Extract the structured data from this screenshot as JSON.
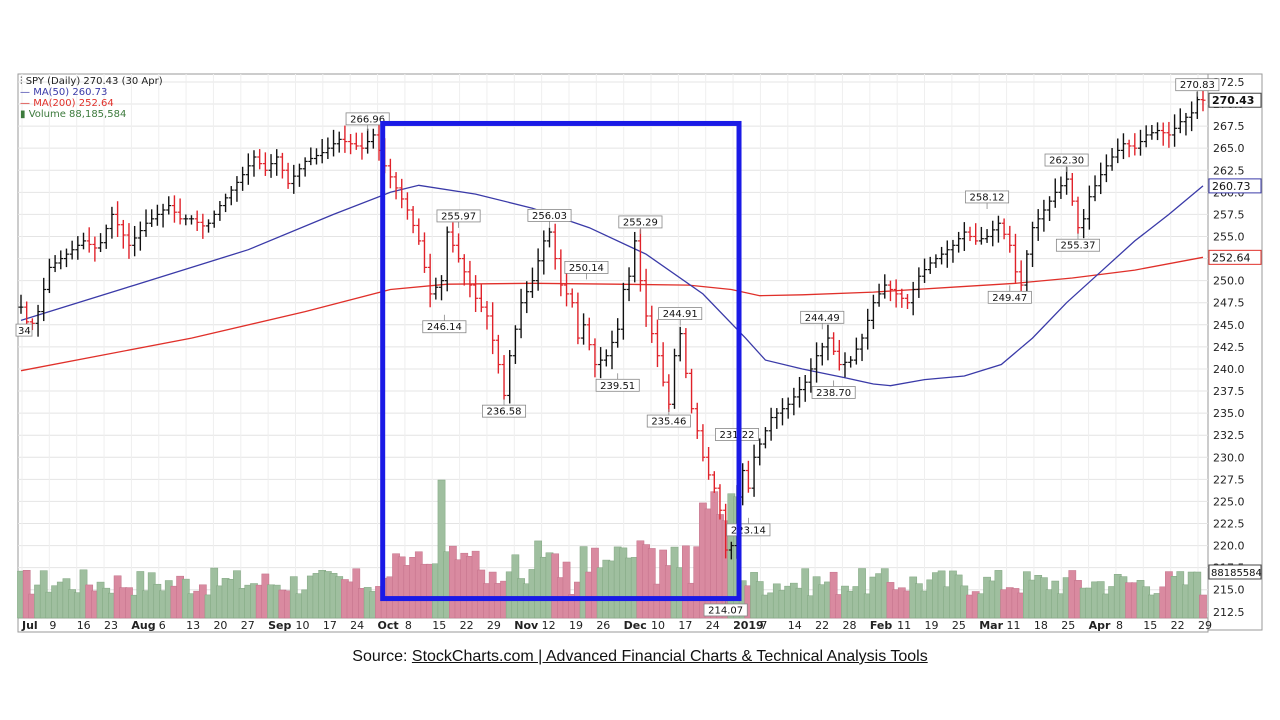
{
  "legend": {
    "symbol": "SPY (Daily) 270.43 (30 Apr)",
    "ma50": "MA(50) 260.73",
    "ma200": "MA(200) 252.64",
    "volume": "Volume 88,185,584"
  },
  "source": {
    "prefix": "Source: ",
    "link_text": "StockCharts.com | Advanced Financial Charts & Technical Analysis Tools"
  },
  "colors": {
    "up": "#111111",
    "down": "#e0222a",
    "ma50": "#3a3aa8",
    "ma200": "#e0302a",
    "vol_up": "#9fbf9f",
    "vol_down": "#d98aa0",
    "highlight": "#1a1ae6",
    "grid": "#e4e4e4"
  },
  "chart_data": {
    "type": "candlestick",
    "y_ticks": [
      "272.5",
      "270.0",
      "267.5",
      "265.0",
      "262.5",
      "260.0",
      "257.5",
      "255.0",
      "252.5",
      "250.0",
      "247.5",
      "245.0",
      "242.5",
      "240.0",
      "237.5",
      "235.0",
      "232.5",
      "230.0",
      "227.5",
      "225.0",
      "222.5",
      "220.0",
      "217.5",
      "215.0",
      "212.5"
    ],
    "ylim": [
      211.8,
      273.4
    ],
    "x_ticks": [
      "Jul",
      "9",
      "16",
      "23",
      "Aug",
      "6",
      "13",
      "20",
      "27",
      "Sep",
      "10",
      "17",
      "24",
      "Oct",
      "8",
      "15",
      "22",
      "29",
      "Nov",
      "12",
      "19",
      "26",
      "Dec",
      "10",
      "17",
      "24",
      "2019",
      "7",
      "14",
      "22",
      "28",
      "Feb",
      "11",
      "19",
      "25",
      "Mar",
      "11",
      "18",
      "25",
      "Apr",
      "8",
      "15",
      "22",
      "29"
    ],
    "right_labels": {
      "last_price": "270.43",
      "ma50": "260.73",
      "ma200": "252.64",
      "volume": "88185584",
      "last_price_value": 270.43,
      "ma50_value": 260.73,
      "ma200_value": 252.64
    },
    "price_path": [
      [
        0,
        247.0
      ],
      [
        3,
        244.5
      ],
      [
        6,
        246.5
      ],
      [
        10,
        251.5
      ],
      [
        16,
        253.0
      ],
      [
        22,
        254.5
      ],
      [
        27,
        253.5
      ],
      [
        32,
        257.5
      ],
      [
        38,
        254.0
      ],
      [
        44,
        256.5
      ],
      [
        52,
        258.5
      ],
      [
        56,
        257.0
      ],
      [
        60,
        257.0
      ],
      [
        65,
        256.0
      ],
      [
        70,
        258.5
      ],
      [
        78,
        262.0
      ],
      [
        82,
        264.0
      ],
      [
        86,
        262.5
      ],
      [
        90,
        264.0
      ],
      [
        94,
        261.0
      ],
      [
        100,
        263.5
      ],
      [
        106,
        264.5
      ],
      [
        112,
        266.0
      ],
      [
        116,
        265.5
      ],
      [
        120,
        265.0
      ],
      [
        124,
        266.5
      ],
      [
        128,
        263.0
      ],
      [
        132,
        260.5
      ],
      [
        136,
        258.0
      ],
      [
        140,
        254.5
      ],
      [
        144,
        248.5
      ],
      [
        148,
        250.0
      ],
      [
        150,
        255.5
      ],
      [
        152,
        254.0
      ],
      [
        156,
        251.0
      ],
      [
        160,
        248.0
      ],
      [
        164,
        246.0
      ],
      [
        168,
        240.5
      ],
      [
        170,
        237.0
      ],
      [
        172,
        241.5
      ],
      [
        174,
        244.5
      ],
      [
        176,
        247.5
      ],
      [
        180,
        250.0
      ],
      [
        184,
        254.5
      ],
      [
        186,
        255.5
      ],
      [
        188,
        252.5
      ],
      [
        190,
        249.5
      ],
      [
        194,
        247.5
      ],
      [
        196,
        243.5
      ],
      [
        198,
        245.0
      ],
      [
        202,
        240.5
      ],
      [
        206,
        241.5
      ],
      [
        210,
        244.5
      ],
      [
        212,
        249.0
      ],
      [
        214,
        250.5
      ],
      [
        216,
        254.5
      ],
      [
        218,
        250.0
      ],
      [
        220,
        246.0
      ],
      [
        222,
        244.0
      ],
      [
        224,
        241.5
      ],
      [
        226,
        238.5
      ],
      [
        228,
        236.0
      ],
      [
        230,
        241.5
      ],
      [
        232,
        244.0
      ],
      [
        234,
        239.5
      ],
      [
        236,
        235.5
      ],
      [
        238,
        233.0
      ],
      [
        240,
        230.0
      ],
      [
        242,
        228.0
      ],
      [
        244,
        226.5
      ],
      [
        246,
        224.0
      ],
      [
        248,
        219.5
      ],
      [
        250,
        220.0
      ],
      [
        252,
        225.5
      ],
      [
        254,
        228.5
      ],
      [
        256,
        226.5
      ],
      [
        258,
        230.0
      ],
      [
        260,
        231.5
      ],
      [
        264,
        234.5
      ],
      [
        270,
        236.0
      ],
      [
        276,
        238.5
      ],
      [
        280,
        241.5
      ],
      [
        284,
        243.5
      ],
      [
        288,
        240.5
      ],
      [
        292,
        241.0
      ],
      [
        296,
        243.5
      ],
      [
        300,
        247.5
      ],
      [
        304,
        249.5
      ],
      [
        308,
        248.5
      ],
      [
        312,
        247.5
      ],
      [
        316,
        250.5
      ],
      [
        320,
        252.0
      ],
      [
        324,
        253.0
      ],
      [
        328,
        254.0
      ],
      [
        332,
        255.5
      ],
      [
        336,
        254.5
      ],
      [
        340,
        255.0
      ],
      [
        344,
        256.5
      ],
      [
        348,
        254.0
      ],
      [
        350,
        251.0
      ],
      [
        352,
        249.5
      ],
      [
        354,
        253.0
      ],
      [
        356,
        256.0
      ],
      [
        360,
        258.0
      ],
      [
        364,
        260.0
      ],
      [
        368,
        261.5
      ],
      [
        370,
        259.0
      ],
      [
        372,
        256.0
      ],
      [
        374,
        257.0
      ],
      [
        376,
        259.5
      ],
      [
        380,
        262.0
      ],
      [
        384,
        264.0
      ],
      [
        388,
        265.5
      ],
      [
        392,
        265.0
      ],
      [
        396,
        266.5
      ],
      [
        400,
        267.0
      ],
      [
        404,
        266.5
      ],
      [
        408,
        268.0
      ],
      [
        412,
        269.0
      ],
      [
        414,
        270.5
      ],
      [
        416,
        270.43
      ]
    ],
    "ma50_path": [
      [
        0,
        245.5
      ],
      [
        40,
        249.5
      ],
      [
        80,
        253.5
      ],
      [
        110,
        257.5
      ],
      [
        130,
        260.0
      ],
      [
        140,
        260.8
      ],
      [
        160,
        259.8
      ],
      [
        180,
        258.2
      ],
      [
        200,
        256.0
      ],
      [
        220,
        253.0
      ],
      [
        240,
        248.5
      ],
      [
        255,
        243.5
      ],
      [
        262,
        241.0
      ],
      [
        275,
        240.0
      ],
      [
        290,
        239.0
      ],
      [
        300,
        238.3
      ],
      [
        306,
        238.1
      ],
      [
        318,
        238.8
      ],
      [
        332,
        239.2
      ],
      [
        345,
        240.5
      ],
      [
        356,
        243.5
      ],
      [
        368,
        247.5
      ],
      [
        380,
        251.0
      ],
      [
        392,
        254.5
      ],
      [
        404,
        257.5
      ],
      [
        416,
        260.73
      ]
    ],
    "ma200_path": [
      [
        0,
        239.8
      ],
      [
        60,
        243.5
      ],
      [
        100,
        246.5
      ],
      [
        130,
        249.0
      ],
      [
        150,
        249.6
      ],
      [
        180,
        249.7
      ],
      [
        210,
        249.6
      ],
      [
        235,
        249.5
      ],
      [
        250,
        249.0
      ],
      [
        260,
        248.3
      ],
      [
        275,
        248.4
      ],
      [
        300,
        248.7
      ],
      [
        330,
        249.3
      ],
      [
        350,
        249.7
      ],
      [
        370,
        250.3
      ],
      [
        392,
        251.2
      ],
      [
        416,
        252.64
      ]
    ],
    "annotations": [
      {
        "i": 122,
        "value": 266.96,
        "label": "266.96",
        "pos": "above"
      },
      {
        "i": 149,
        "value": 246.14,
        "label": "246.14",
        "pos": "below"
      },
      {
        "i": 154,
        "value": 255.97,
        "label": "255.97",
        "pos": "above"
      },
      {
        "i": 170,
        "value": 236.58,
        "label": "236.58",
        "pos": "below"
      },
      {
        "i": 186,
        "value": 256.03,
        "label": "256.03",
        "pos": "above"
      },
      {
        "i": 199,
        "value": 250.14,
        "label": "250.14",
        "pos": "above"
      },
      {
        "i": 210,
        "value": 239.51,
        "label": "239.51",
        "pos": "below"
      },
      {
        "i": 218,
        "value": 255.29,
        "label": "255.29",
        "pos": "above"
      },
      {
        "i": 232,
        "value": 244.91,
        "label": "244.91",
        "pos": "above"
      },
      {
        "i": 228,
        "value": 235.46,
        "label": "235.46",
        "pos": "below"
      },
      {
        "i": 252,
        "value": 231.22,
        "label": "231.22",
        "pos": "above"
      },
      {
        "i": 256,
        "value": 223.14,
        "label": "223.14",
        "pos": "below"
      },
      {
        "i": 248,
        "value": 214.07,
        "label": "214.07",
        "pos": "below"
      },
      {
        "i": 282,
        "value": 244.49,
        "label": "244.49",
        "pos": "above"
      },
      {
        "i": 286,
        "value": 238.7,
        "label": "238.70",
        "pos": "below"
      },
      {
        "i": 340,
        "value": 258.12,
        "label": "258.12",
        "pos": "above"
      },
      {
        "i": 348,
        "value": 249.47,
        "label": "249.47",
        "pos": "below"
      },
      {
        "i": 368,
        "value": 262.3,
        "label": "262.30",
        "pos": "above"
      },
      {
        "i": 372,
        "value": 255.37,
        "label": "255.37",
        "pos": "below"
      },
      {
        "i": 414,
        "value": 270.83,
        "label": "270.83",
        "pos": "above"
      }
    ],
    "left_cut_label": "34",
    "highlight_box": {
      "from_i": 128,
      "to_i": 252,
      "top": 267.8,
      "bottom": 214.0
    }
  }
}
